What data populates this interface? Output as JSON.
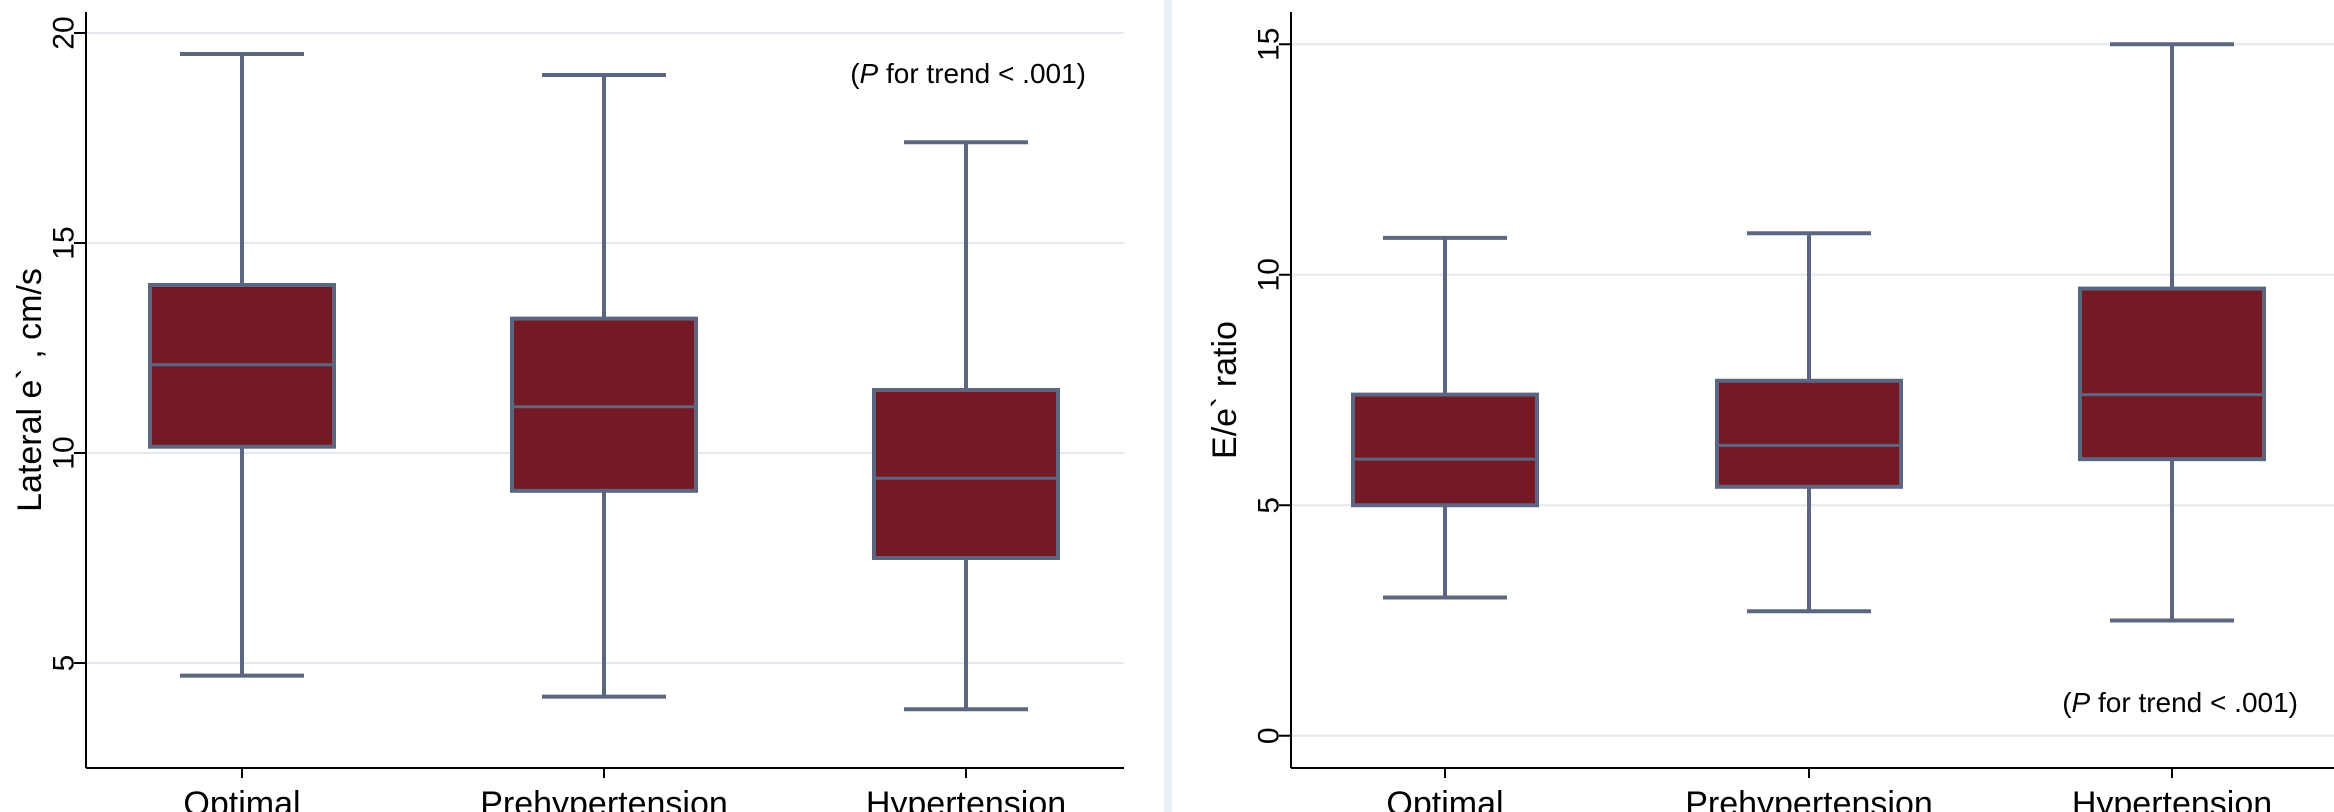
{
  "chart_data": [
    {
      "type": "box",
      "categories": [
        "Optimal",
        "Prehypertension",
        "Hypertension"
      ],
      "ylabel": "Lateral e` , cm/s",
      "yticks": [
        5,
        10,
        15,
        20
      ],
      "ylim": [
        2.5,
        20.5
      ],
      "grid": true,
      "annotation": {
        "prefix": "(",
        "italic": "P",
        "text": " for trend < .001)",
        "position": "top-right"
      },
      "boxes": [
        {
          "category": "Optimal",
          "whisker_low": 4.7,
          "q1": 10.15,
          "median": 12.1,
          "q3": 14.0,
          "whisker_high": 19.5
        },
        {
          "category": "Prehypertension",
          "whisker_low": 4.2,
          "q1": 9.1,
          "median": 11.1,
          "q3": 13.2,
          "whisker_high": 19.0
        },
        {
          "category": "Hypertension",
          "whisker_low": 3.9,
          "q1": 7.5,
          "median": 9.4,
          "q3": 11.5,
          "whisker_high": 17.4
        }
      ]
    },
    {
      "type": "box",
      "categories": [
        "Optimal",
        "Prehypertension",
        "Hypertension"
      ],
      "ylabel": "E/e` ratio",
      "yticks": [
        0,
        5,
        10,
        15
      ],
      "ylim": [
        -0.7,
        15.7
      ],
      "grid": true,
      "annotation": {
        "prefix": "(",
        "italic": "P",
        "text": " for trend < .001)",
        "position": "bottom-right"
      },
      "boxes": [
        {
          "category": "Optimal",
          "whisker_low": 3.0,
          "q1": 5.0,
          "median": 6.0,
          "q3": 7.4,
          "whisker_high": 10.8
        },
        {
          "category": "Prehypertension",
          "whisker_low": 2.7,
          "q1": 5.4,
          "median": 6.3,
          "q3": 7.7,
          "whisker_high": 10.9
        },
        {
          "category": "Hypertension",
          "whisker_low": 2.5,
          "q1": 6.0,
          "median": 7.4,
          "q3": 9.7,
          "whisker_high": 15.0
        }
      ]
    }
  ],
  "colors": {
    "box_fill": "#731a24",
    "box_stroke": "#5c6680",
    "grid": "#e3e9ee",
    "background": "#e9eef2",
    "plot_bg": "#ffffff"
  }
}
